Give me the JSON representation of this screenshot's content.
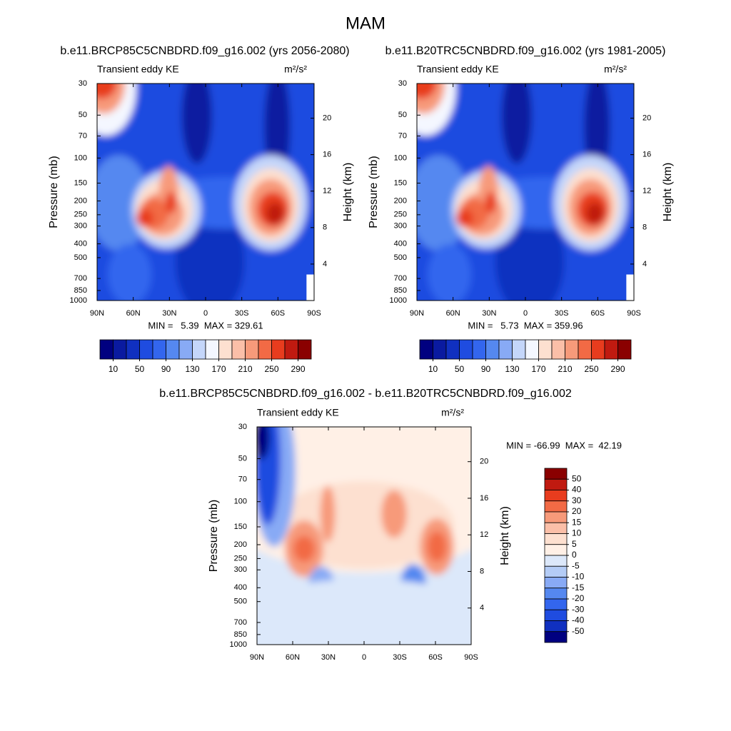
{
  "chart_data": [
    {
      "type": "contour",
      "title": "MAM",
      "subtitle": "b.e11.BRCP85C5CNBDRD.f09_g16.002 (yrs 2056-2080)",
      "left_label": "Transient eddy KE",
      "units": "m²/s²",
      "stats": "MIN =   5.39  MAX = 329.61",
      "ylabel": "Pressure (mb)",
      "y2label": "Height (km)",
      "log_y": true,
      "xlim": [
        90,
        -90
      ],
      "xticks": [
        {
          "value": 90,
          "label": "90N"
        },
        {
          "value": 60,
          "label": "60N"
        },
        {
          "value": 30,
          "label": "30N"
        },
        0,
        {
          "value": -30,
          "label": "30S"
        },
        {
          "value": -60,
          "label": "60S"
        },
        {
          "value": -90,
          "label": "90S"
        }
      ],
      "ylim": [
        1000,
        30
      ],
      "yticks": [
        30,
        50,
        70,
        100,
        150,
        200,
        250,
        300,
        400,
        500,
        700,
        850,
        1000
      ],
      "y2lim": [
        0,
        23.8
      ],
      "y2ticks": [
        4,
        8,
        12,
        16,
        20
      ],
      "colorbar": {
        "lim": [
          -10,
          310
        ],
        "ticks": [
          10,
          50,
          90,
          130,
          170,
          210,
          250,
          290
        ],
        "colors": [
          "#000080",
          "#0a1aa0",
          "#1030c0",
          "#1f4ce0",
          "#3366ee",
          "#5588f0",
          "#88aaf5",
          "#c4d6fa",
          "#f4f7ff",
          "#fde0d0",
          "#fbbfa8",
          "#f79a7a",
          "#f26a45",
          "#e83c1e",
          "#c01a10",
          "#8a0000"
        ]
      }
    },
    {
      "type": "contour",
      "subtitle": "b.e11.B20TRC5CNBDRD.f09_g16.002 (yrs 1981-2005)",
      "left_label": "Transient eddy KE",
      "units": "m²/s²",
      "stats": "MIN =   5.73  MAX = 359.96",
      "ylabel": "Pressure (mb)",
      "y2label": "Height (km)",
      "log_y": true,
      "xlim": [
        90,
        -90
      ],
      "xticks": [
        {
          "value": 90,
          "label": "90N"
        },
        {
          "value": 60,
          "label": "60N"
        },
        {
          "value": 30,
          "label": "30N"
        },
        0,
        {
          "value": -30,
          "label": "30S"
        },
        {
          "value": -60,
          "label": "60S"
        },
        {
          "value": -90,
          "label": "90S"
        }
      ],
      "ylim": [
        1000,
        30
      ],
      "yticks": [
        30,
        50,
        70,
        100,
        150,
        200,
        250,
        300,
        400,
        500,
        700,
        850,
        1000
      ],
      "y2lim": [
        0,
        23.8
      ],
      "y2ticks": [
        4,
        8,
        12,
        16,
        20
      ],
      "colorbar": {
        "lim": [
          -10,
          310
        ],
        "ticks": [
          10,
          50,
          90,
          130,
          170,
          210,
          250,
          290
        ],
        "colors": [
          "#000080",
          "#0a1aa0",
          "#1030c0",
          "#1f4ce0",
          "#3366ee",
          "#5588f0",
          "#88aaf5",
          "#c4d6fa",
          "#f4f7ff",
          "#fde0d0",
          "#fbbfa8",
          "#f79a7a",
          "#f26a45",
          "#e83c1e",
          "#c01a10",
          "#8a0000"
        ]
      }
    },
    {
      "type": "contour",
      "subtitle": "b.e11.BRCP85C5CNBDRD.f09_g16.002 - b.e11.B20TRC5CNBDRD.f09_g16.002",
      "left_label": "Transient eddy KE",
      "units": "m²/s²",
      "stats": "MIN = -66.99  MAX =  42.19",
      "ylabel": "Pressure (mb)",
      "y2label": "Height (km)",
      "log_y": true,
      "xlim": [
        90,
        -90
      ],
      "xticks": [
        {
          "value": 90,
          "label": "90N"
        },
        {
          "value": 60,
          "label": "60N"
        },
        {
          "value": 30,
          "label": "30N"
        },
        0,
        {
          "value": -30,
          "label": "30S"
        },
        {
          "value": -60,
          "label": "60S"
        },
        {
          "value": -90,
          "label": "90S"
        }
      ],
      "ylim": [
        1000,
        30
      ],
      "yticks": [
        30,
        50,
        70,
        100,
        150,
        200,
        250,
        300,
        400,
        500,
        700,
        850,
        1000
      ],
      "y2lim": [
        0,
        23.8
      ],
      "y2ticks": [
        4,
        8,
        12,
        16,
        20
      ],
      "colorbar": {
        "ticks": [
          50,
          40,
          30,
          20,
          15,
          10,
          5,
          0,
          -5,
          -10,
          -15,
          -20,
          -30,
          -40,
          -50
        ],
        "colors": [
          "#8a0000",
          "#c01a10",
          "#e83c1e",
          "#f26a45",
          "#f79a7a",
          "#fbbfa8",
          "#fde0d0",
          "#fff0e6",
          "#dce8fa",
          "#b4ccf6",
          "#88aaf5",
          "#5588f0",
          "#3366ee",
          "#1f4ce0",
          "#1030c0",
          "#000080"
        ]
      }
    }
  ]
}
